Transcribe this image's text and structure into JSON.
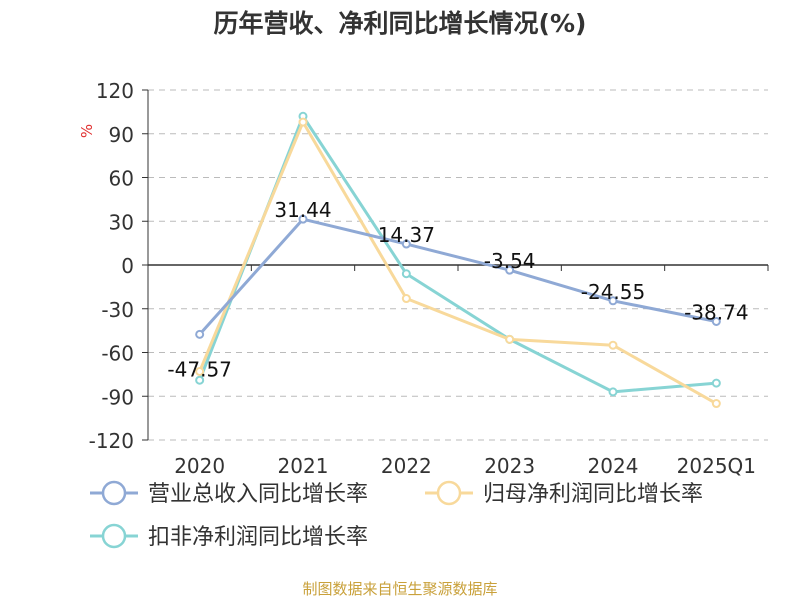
{
  "chart_data": {
    "type": "line",
    "title": "历年营收、净利同比增长情况(%)",
    "ylabel": "%",
    "xlabel": "",
    "categories": [
      "2020",
      "2021",
      "2022",
      "2023",
      "2024",
      "2025Q1"
    ],
    "ylim": [
      -120,
      120
    ],
    "yticks": [
      120,
      90,
      60,
      30,
      0,
      -30,
      -60,
      -90,
      -120
    ],
    "grid": true,
    "legend_position": "bottom-left",
    "series": [
      {
        "name": "营业总收入同比增长率",
        "color": "#8fa9d5",
        "values": [
          -47.57,
          31.44,
          14.37,
          -3.54,
          -24.55,
          -38.74
        ],
        "labels": [
          "-47.57",
          "31.44",
          "14.37",
          "-3.54",
          "-24.55",
          "-38.74"
        ]
      },
      {
        "name": "归母净利润同比增长率",
        "color": "#f8d99b",
        "values": [
          -73,
          98,
          -23,
          -51,
          -55,
          -95
        ]
      },
      {
        "name": "扣非净利润同比增长率",
        "color": "#87d4d4",
        "values": [
          -79,
          102,
          -6,
          -51,
          -87,
          -81
        ]
      }
    ]
  },
  "source": "制图数据来自恒生聚源数据库",
  "axis_color": "#333333",
  "grid_color": "#bbbbbb",
  "ylabel_color": "#e03030"
}
